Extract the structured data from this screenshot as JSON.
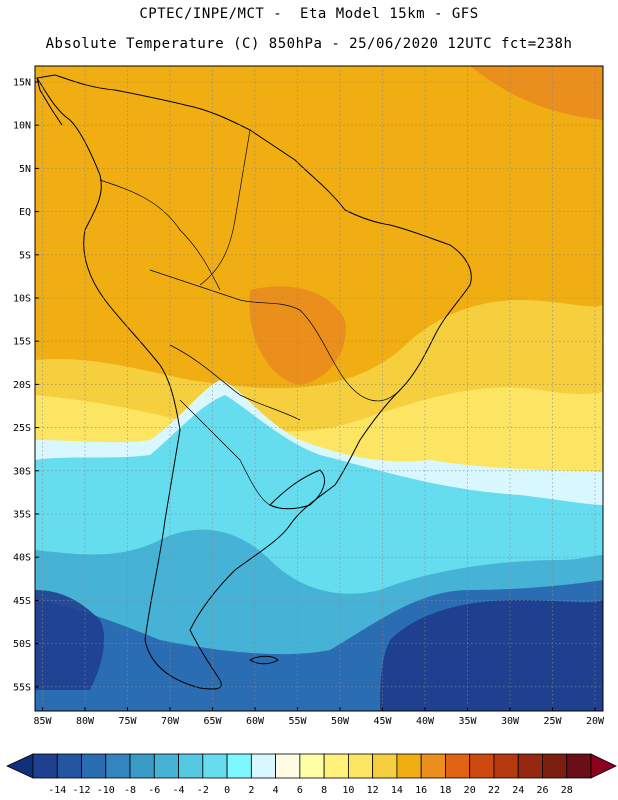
{
  "header": {
    "line1": "CPTEC/INPE/MCT -  Eta Model 15km - GFS",
    "line2": "Absolute Temperature (C) 850hPa - 25/06/2020 12UTC fct=238h"
  },
  "axes": {
    "lat_labels": [
      "15N",
      "10N",
      "5N",
      "EQ",
      "5S",
      "10S",
      "15S",
      "20S",
      "25S",
      "30S",
      "35S",
      "40S",
      "45S",
      "50S",
      "55S"
    ],
    "lon_labels": [
      "85W",
      "80W",
      "75W",
      "70W",
      "65W",
      "60W",
      "55W",
      "50W",
      "45W",
      "40W",
      "35W",
      "30W",
      "25W",
      "20W"
    ]
  },
  "colorbar": {
    "labels": [
      "-14",
      "-12",
      "-10",
      "-8",
      "-6",
      "-4",
      "-2",
      "0",
      "2",
      "4",
      "6",
      "8",
      "10",
      "12",
      "14",
      "16",
      "18",
      "20",
      "22",
      "24",
      "26",
      "28"
    ],
    "colors": [
      "#1f3f8f",
      "#2455a0",
      "#2a6db2",
      "#3385c0",
      "#3a9bc8",
      "#45b2d6",
      "#55c8e2",
      "#66dcef",
      "#7ff7ff",
      "#d9f7ff",
      "#fffbe5",
      "#ffffa6",
      "#fff17a",
      "#fde564",
      "#f5cf3d",
      "#f0ae12",
      "#eb8f1c",
      "#e06414",
      "#cc4a0f",
      "#b53a0f",
      "#96280f",
      "#7c1e10",
      "#6b0e18"
    ],
    "underflow_color": "#10307a",
    "overflow_color": "#8b0020"
  },
  "map": {
    "variable": "Absolute Temperature (C)",
    "level": "850hPa",
    "zones": [
      {
        "name": "warm-north",
        "color": "#f0ae12"
      },
      {
        "name": "hot-east-atlantic",
        "color": "#eb8f1c"
      },
      {
        "name": "mild",
        "color": "#f5cf3d"
      },
      {
        "name": "cool",
        "color": "#fde564"
      },
      {
        "name": "transition",
        "color": "#d9f7ff"
      },
      {
        "name": "cold",
        "color": "#66dcef"
      },
      {
        "name": "colder",
        "color": "#45b2d6"
      },
      {
        "name": "very-cold",
        "color": "#2a6db2"
      },
      {
        "name": "coldest",
        "color": "#1f3f8f"
      }
    ]
  }
}
